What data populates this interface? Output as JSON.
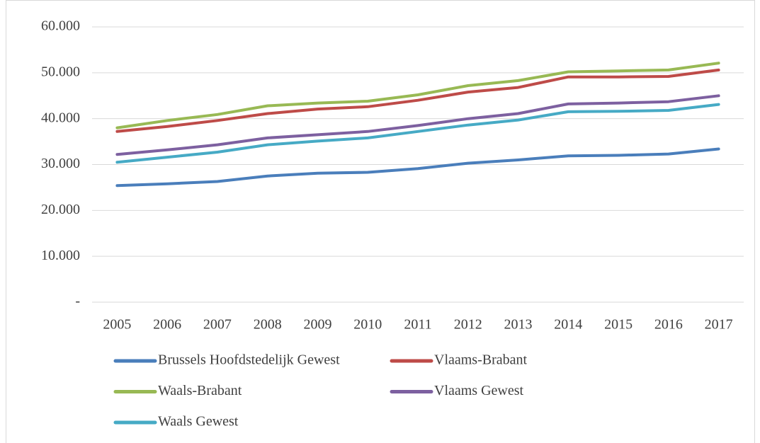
{
  "chart_data": {
    "type": "line",
    "categories": [
      "2005",
      "2006",
      "2007",
      "2008",
      "2009",
      "2010",
      "2011",
      "2012",
      "2013",
      "2014",
      "2015",
      "2016",
      "2017"
    ],
    "series": [
      {
        "name": "Brussels Hoofdstedelijk Gewest",
        "color": "#4a7ebb",
        "values": [
          25400,
          25800,
          26300,
          27500,
          28100,
          28300,
          29100,
          30300,
          31000,
          31900,
          32000,
          32300,
          33400
        ]
      },
      {
        "name": "Vlaams-Brabant",
        "color": "#be4b48",
        "values": [
          37200,
          38300,
          39600,
          41100,
          42100,
          42600,
          44000,
          45800,
          46800,
          49100,
          49100,
          49200,
          50600
        ]
      },
      {
        "name": "Waals-Brabant",
        "color": "#98b954",
        "values": [
          38000,
          39600,
          40900,
          42800,
          43400,
          43800,
          45200,
          47200,
          48300,
          50200,
          50400,
          50600,
          52100
        ]
      },
      {
        "name": "Vlaams Gewest",
        "color": "#7d60a0",
        "values": [
          32200,
          33200,
          34300,
          35800,
          36500,
          37200,
          38500,
          40000,
          41100,
          43200,
          43400,
          43700,
          45000
        ]
      },
      {
        "name": "Waals Gewest",
        "color": "#46aac5",
        "values": [
          30500,
          31600,
          32700,
          34300,
          35100,
          35800,
          37200,
          38600,
          39700,
          41500,
          41600,
          41800,
          43100
        ]
      }
    ],
    "ylim": [
      0,
      60000
    ],
    "yticks": [
      {
        "value": 0,
        "label": "-"
      },
      {
        "value": 10000,
        "label": "10.000"
      },
      {
        "value": 20000,
        "label": "20.000"
      },
      {
        "value": 30000,
        "label": "30.000"
      },
      {
        "value": 40000,
        "label": "40.000"
      },
      {
        "value": 50000,
        "label": "50.000"
      },
      {
        "value": 60000,
        "label": "60.000"
      }
    ],
    "grid": true,
    "legend": "bottom"
  }
}
